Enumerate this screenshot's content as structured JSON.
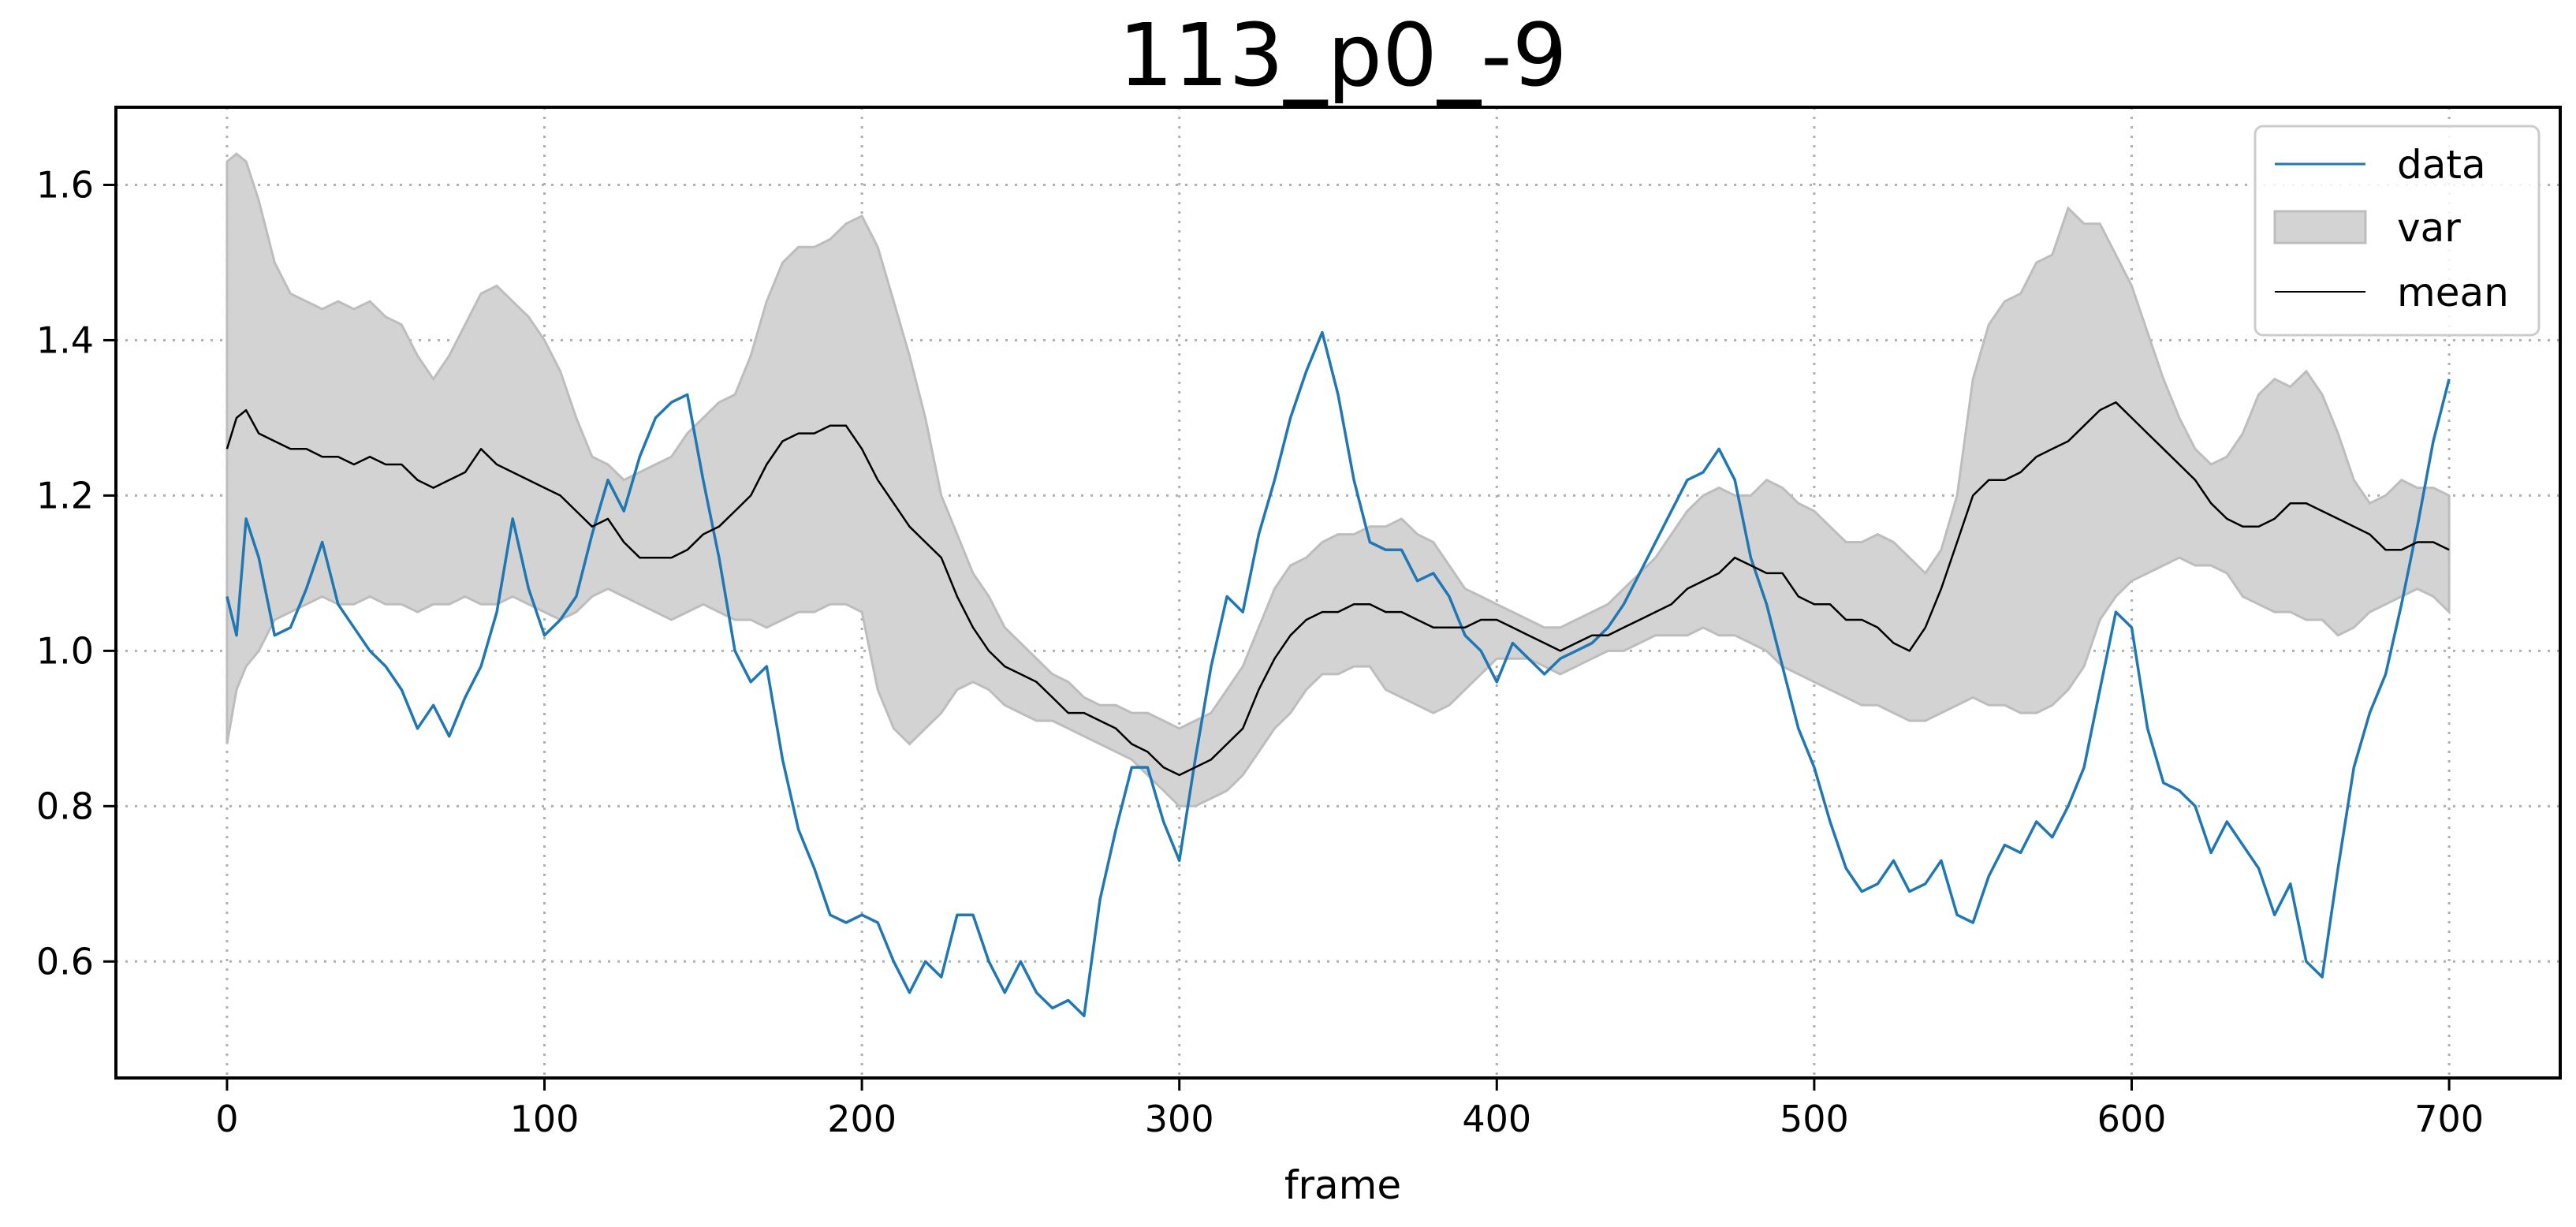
{
  "chart_data": {
    "type": "line",
    "title": "113_p0_-9",
    "xlabel": "frame",
    "ylabel": "",
    "xlim": [
      -35,
      735
    ],
    "ylim": [
      0.45,
      1.7
    ],
    "xticks": [
      0,
      100,
      200,
      300,
      400,
      500,
      600,
      700
    ],
    "yticks": [
      0.6,
      0.8,
      1.0,
      1.2,
      1.4,
      1.6
    ],
    "xtick_labels": [
      "0",
      "100",
      "200",
      "300",
      "400",
      "500",
      "600",
      "700"
    ],
    "ytick_labels": [
      "0.6",
      "0.8",
      "1.0",
      "1.2",
      "1.4",
      "1.6"
    ],
    "grid": true,
    "legend_position": "top-right",
    "legend": [
      {
        "label": "data",
        "kind": "line",
        "color": "#1f77b4"
      },
      {
        "label": "var",
        "kind": "band",
        "color": "#d3d3d3"
      },
      {
        "label": "mean",
        "kind": "line",
        "color": "#000000"
      }
    ],
    "series": [
      {
        "name": "data",
        "role": "data",
        "color": "#1f77b4",
        "x": [
          0,
          3,
          6,
          10,
          15,
          20,
          25,
          30,
          35,
          40,
          45,
          50,
          55,
          60,
          65,
          70,
          75,
          80,
          85,
          90,
          95,
          100,
          105,
          110,
          115,
          120,
          125,
          130,
          135,
          140,
          145,
          150,
          155,
          160,
          165,
          170,
          175,
          180,
          185,
          190,
          195,
          200,
          205,
          210,
          215,
          220,
          225,
          230,
          235,
          240,
          245,
          250,
          255,
          260,
          265,
          270,
          275,
          280,
          285,
          290,
          295,
          300,
          305,
          310,
          315,
          320,
          325,
          330,
          335,
          340,
          345,
          350,
          355,
          360,
          365,
          370,
          375,
          380,
          385,
          390,
          395,
          400,
          405,
          410,
          415,
          420,
          425,
          430,
          435,
          440,
          445,
          450,
          455,
          460,
          465,
          470,
          475,
          480,
          485,
          490,
          495,
          500,
          505,
          510,
          515,
          520,
          525,
          530,
          535,
          540,
          545,
          550,
          555,
          560,
          565,
          570,
          575,
          580,
          585,
          590,
          595,
          600,
          605,
          610,
          615,
          620,
          625,
          630,
          635,
          640,
          645,
          650,
          655,
          660,
          665,
          670,
          675,
          680,
          685,
          690,
          695,
          700
        ],
        "y": [
          1.07,
          1.02,
          1.17,
          1.12,
          1.02,
          1.03,
          1.08,
          1.14,
          1.06,
          1.03,
          1.0,
          0.98,
          0.95,
          0.9,
          0.93,
          0.89,
          0.94,
          0.98,
          1.05,
          1.17,
          1.08,
          1.02,
          1.04,
          1.07,
          1.15,
          1.22,
          1.18,
          1.25,
          1.3,
          1.32,
          1.33,
          1.22,
          1.12,
          1.0,
          0.96,
          0.98,
          0.86,
          0.77,
          0.72,
          0.66,
          0.65,
          0.66,
          0.65,
          0.6,
          0.56,
          0.6,
          0.58,
          0.66,
          0.66,
          0.6,
          0.56,
          0.6,
          0.56,
          0.54,
          0.55,
          0.53,
          0.68,
          0.77,
          0.85,
          0.85,
          0.78,
          0.73,
          0.86,
          0.98,
          1.07,
          1.05,
          1.15,
          1.22,
          1.3,
          1.36,
          1.41,
          1.33,
          1.22,
          1.14,
          1.13,
          1.13,
          1.09,
          1.1,
          1.07,
          1.02,
          1.0,
          0.96,
          1.01,
          0.99,
          0.97,
          0.99,
          1.0,
          1.01,
          1.03,
          1.06,
          1.1,
          1.14,
          1.18,
          1.22,
          1.23,
          1.26,
          1.22,
          1.12,
          1.06,
          0.98,
          0.9,
          0.85,
          0.78,
          0.72,
          0.69,
          0.7,
          0.73,
          0.69,
          0.7,
          0.73,
          0.66,
          0.65,
          0.71,
          0.75,
          0.74,
          0.78,
          0.76,
          0.8,
          0.85,
          0.95,
          1.05,
          1.03,
          0.9,
          0.83,
          0.82,
          0.8,
          0.74,
          0.78,
          0.75,
          0.72,
          0.66,
          0.7,
          0.6,
          0.58,
          0.72,
          0.85,
          0.92,
          0.97,
          1.06,
          1.16,
          1.27,
          1.35
        ]
      },
      {
        "name": "mean",
        "role": "mean",
        "color": "#000000",
        "x": [
          0,
          3,
          6,
          10,
          15,
          20,
          25,
          30,
          35,
          40,
          45,
          50,
          55,
          60,
          65,
          70,
          75,
          80,
          85,
          90,
          95,
          100,
          105,
          110,
          115,
          120,
          125,
          130,
          135,
          140,
          145,
          150,
          155,
          160,
          165,
          170,
          175,
          180,
          185,
          190,
          195,
          200,
          205,
          210,
          215,
          220,
          225,
          230,
          235,
          240,
          245,
          250,
          255,
          260,
          265,
          270,
          275,
          280,
          285,
          290,
          295,
          300,
          305,
          310,
          315,
          320,
          325,
          330,
          335,
          340,
          345,
          350,
          355,
          360,
          365,
          370,
          375,
          380,
          385,
          390,
          395,
          400,
          405,
          410,
          415,
          420,
          425,
          430,
          435,
          440,
          445,
          450,
          455,
          460,
          465,
          470,
          475,
          480,
          485,
          490,
          495,
          500,
          505,
          510,
          515,
          520,
          525,
          530,
          535,
          540,
          545,
          550,
          555,
          560,
          565,
          570,
          575,
          580,
          585,
          590,
          595,
          600,
          605,
          610,
          615,
          620,
          625,
          630,
          635,
          640,
          645,
          650,
          655,
          660,
          665,
          670,
          675,
          680,
          685,
          690,
          695,
          700
        ],
        "y": [
          1.26,
          1.3,
          1.31,
          1.28,
          1.27,
          1.26,
          1.26,
          1.25,
          1.25,
          1.24,
          1.25,
          1.24,
          1.24,
          1.22,
          1.21,
          1.22,
          1.23,
          1.26,
          1.24,
          1.23,
          1.22,
          1.21,
          1.2,
          1.18,
          1.16,
          1.17,
          1.14,
          1.12,
          1.12,
          1.12,
          1.13,
          1.15,
          1.16,
          1.18,
          1.2,
          1.24,
          1.27,
          1.28,
          1.28,
          1.29,
          1.29,
          1.26,
          1.22,
          1.19,
          1.16,
          1.14,
          1.12,
          1.07,
          1.03,
          1.0,
          0.98,
          0.97,
          0.96,
          0.94,
          0.92,
          0.92,
          0.91,
          0.9,
          0.88,
          0.87,
          0.85,
          0.84,
          0.85,
          0.86,
          0.88,
          0.9,
          0.95,
          0.99,
          1.02,
          1.04,
          1.05,
          1.05,
          1.06,
          1.06,
          1.05,
          1.05,
          1.04,
          1.03,
          1.03,
          1.03,
          1.04,
          1.04,
          1.03,
          1.02,
          1.01,
          1.0,
          1.01,
          1.02,
          1.02,
          1.03,
          1.04,
          1.05,
          1.06,
          1.08,
          1.09,
          1.1,
          1.12,
          1.11,
          1.1,
          1.1,
          1.07,
          1.06,
          1.06,
          1.04,
          1.04,
          1.03,
          1.01,
          1.0,
          1.03,
          1.08,
          1.14,
          1.2,
          1.22,
          1.22,
          1.23,
          1.25,
          1.26,
          1.27,
          1.29,
          1.31,
          1.32,
          1.3,
          1.28,
          1.26,
          1.24,
          1.22,
          1.19,
          1.17,
          1.16,
          1.16,
          1.17,
          1.19,
          1.19,
          1.18,
          1.17,
          1.16,
          1.15,
          1.13,
          1.13,
          1.14,
          1.14,
          1.13
        ]
      }
    ],
    "band": {
      "name": "var",
      "color": "#d3d3d3",
      "x": [
        0,
        3,
        6,
        10,
        15,
        20,
        25,
        30,
        35,
        40,
        45,
        50,
        55,
        60,
        65,
        70,
        75,
        80,
        85,
        90,
        95,
        100,
        105,
        110,
        115,
        120,
        125,
        130,
        135,
        140,
        145,
        150,
        155,
        160,
        165,
        170,
        175,
        180,
        185,
        190,
        195,
        200,
        205,
        210,
        215,
        220,
        225,
        230,
        235,
        240,
        245,
        250,
        255,
        260,
        265,
        270,
        275,
        280,
        285,
        290,
        295,
        300,
        305,
        310,
        315,
        320,
        325,
        330,
        335,
        340,
        345,
        350,
        355,
        360,
        365,
        370,
        375,
        380,
        385,
        390,
        395,
        400,
        405,
        410,
        415,
        420,
        425,
        430,
        435,
        440,
        445,
        450,
        455,
        460,
        465,
        470,
        475,
        480,
        485,
        490,
        495,
        500,
        505,
        510,
        515,
        520,
        525,
        530,
        535,
        540,
        545,
        550,
        555,
        560,
        565,
        570,
        575,
        580,
        585,
        590,
        595,
        600,
        605,
        610,
        615,
        620,
        625,
        630,
        635,
        640,
        645,
        650,
        655,
        660,
        665,
        670,
        675,
        680,
        685,
        690,
        695,
        700
      ],
      "upper": [
        1.63,
        1.64,
        1.63,
        1.58,
        1.5,
        1.46,
        1.45,
        1.44,
        1.45,
        1.44,
        1.45,
        1.43,
        1.42,
        1.38,
        1.35,
        1.38,
        1.42,
        1.46,
        1.47,
        1.45,
        1.43,
        1.4,
        1.36,
        1.3,
        1.25,
        1.24,
        1.22,
        1.23,
        1.24,
        1.25,
        1.28,
        1.3,
        1.32,
        1.33,
        1.38,
        1.45,
        1.5,
        1.52,
        1.52,
        1.53,
        1.55,
        1.56,
        1.52,
        1.45,
        1.38,
        1.3,
        1.2,
        1.15,
        1.1,
        1.07,
        1.03,
        1.01,
        0.99,
        0.97,
        0.96,
        0.94,
        0.93,
        0.93,
        0.92,
        0.92,
        0.91,
        0.9,
        0.91,
        0.92,
        0.95,
        0.98,
        1.03,
        1.08,
        1.11,
        1.12,
        1.14,
        1.15,
        1.15,
        1.16,
        1.16,
        1.17,
        1.15,
        1.14,
        1.11,
        1.08,
        1.07,
        1.06,
        1.05,
        1.04,
        1.03,
        1.03,
        1.04,
        1.05,
        1.06,
        1.08,
        1.1,
        1.12,
        1.15,
        1.18,
        1.2,
        1.21,
        1.2,
        1.2,
        1.22,
        1.21,
        1.19,
        1.18,
        1.16,
        1.14,
        1.14,
        1.15,
        1.14,
        1.12,
        1.1,
        1.13,
        1.2,
        1.35,
        1.42,
        1.45,
        1.46,
        1.5,
        1.51,
        1.57,
        1.55,
        1.55,
        1.51,
        1.47,
        1.41,
        1.35,
        1.3,
        1.26,
        1.24,
        1.25,
        1.28,
        1.33,
        1.35,
        1.34,
        1.36,
        1.33,
        1.28,
        1.22,
        1.19,
        1.2,
        1.22,
        1.21,
        1.21,
        1.2
      ],
      "lower": [
        0.88,
        0.95,
        0.98,
        1.0,
        1.04,
        1.05,
        1.06,
        1.07,
        1.06,
        1.06,
        1.07,
        1.06,
        1.06,
        1.05,
        1.06,
        1.06,
        1.07,
        1.06,
        1.06,
        1.07,
        1.06,
        1.05,
        1.04,
        1.05,
        1.07,
        1.08,
        1.07,
        1.06,
        1.05,
        1.04,
        1.05,
        1.06,
        1.05,
        1.04,
        1.04,
        1.03,
        1.04,
        1.05,
        1.05,
        1.06,
        1.06,
        1.05,
        0.95,
        0.9,
        0.88,
        0.9,
        0.92,
        0.95,
        0.96,
        0.95,
        0.93,
        0.92,
        0.91,
        0.91,
        0.9,
        0.89,
        0.88,
        0.87,
        0.86,
        0.84,
        0.82,
        0.8,
        0.8,
        0.81,
        0.82,
        0.84,
        0.87,
        0.9,
        0.92,
        0.95,
        0.97,
        0.97,
        0.98,
        0.98,
        0.95,
        0.94,
        0.93,
        0.92,
        0.93,
        0.95,
        0.97,
        0.99,
        0.99,
        0.99,
        0.98,
        0.97,
        0.98,
        0.99,
        1.0,
        1.0,
        1.01,
        1.02,
        1.02,
        1.02,
        1.03,
        1.02,
        1.02,
        1.01,
        1.0,
        0.98,
        0.97,
        0.96,
        0.95,
        0.94,
        0.93,
        0.93,
        0.92,
        0.91,
        0.91,
        0.92,
        0.93,
        0.94,
        0.93,
        0.93,
        0.92,
        0.92,
        0.93,
        0.95,
        0.98,
        1.04,
        1.07,
        1.09,
        1.1,
        1.11,
        1.12,
        1.11,
        1.11,
        1.1,
        1.07,
        1.06,
        1.05,
        1.05,
        1.04,
        1.04,
        1.02,
        1.03,
        1.05,
        1.06,
        1.07,
        1.08,
        1.07,
        1.05
      ]
    }
  }
}
